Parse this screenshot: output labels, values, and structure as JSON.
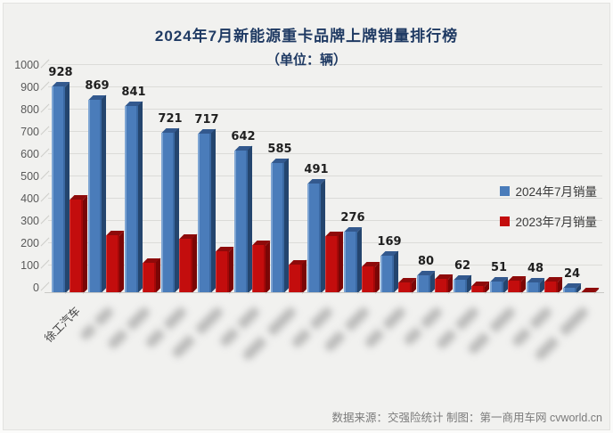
{
  "title": {
    "line1": "2024年7月新能源重卡品牌上牌销量排行榜",
    "line2": "（单位：辆）"
  },
  "legend": [
    {
      "label": "2024年7月销量",
      "color": "#4a7cba"
    },
    {
      "label": "2023年7月销量",
      "color": "#c30d0d"
    }
  ],
  "footer": {
    "source_text": "数据来源：交强险统计  制图：第一商用车网 cvworld.cn"
  },
  "chart_data": {
    "type": "bar",
    "title": "2024年7月新能源重卡品牌上牌销量排行榜",
    "subtitle": "（单位：辆）",
    "ylabel": "",
    "xlabel": "",
    "ylim": [
      0,
      1000
    ],
    "ytick_step": 100,
    "grid": true,
    "legend_position": "right",
    "data_labels_on_series": "2024年7月销量",
    "categories": [
      {
        "label": "徐工汽车",
        "blurred": false
      },
      {
        "label": "",
        "blurred": true,
        "blur_len": 46,
        "segments": 2
      },
      {
        "label": "",
        "blurred": true,
        "blur_len": 60,
        "segments": 2
      },
      {
        "label": "",
        "blurred": true,
        "blur_len": 58,
        "segments": 2
      },
      {
        "label": "",
        "blurred": true,
        "blur_len": 74,
        "segments": 2
      },
      {
        "label": "",
        "blurred": true,
        "blur_len": 56,
        "segments": 2
      },
      {
        "label": "",
        "blurred": true,
        "blur_len": 78,
        "segments": 2
      },
      {
        "label": "",
        "blurred": true,
        "blur_len": 58,
        "segments": 2
      },
      {
        "label": "",
        "blurred": true,
        "blur_len": 64,
        "segments": 2
      },
      {
        "label": "",
        "blurred": true,
        "blur_len": 58,
        "segments": 2
      },
      {
        "label": "",
        "blurred": true,
        "blur_len": 54,
        "segments": 2
      },
      {
        "label": "",
        "blurred": true,
        "blur_len": 60,
        "segments": 2
      },
      {
        "label": "",
        "blurred": true,
        "blur_len": 68,
        "segments": 2
      },
      {
        "label": "",
        "blurred": true,
        "blur_len": 56,
        "segments": 2
      },
      {
        "label": "",
        "blurred": true,
        "blur_len": 78,
        "segments": 2
      }
    ],
    "series": [
      {
        "name": "2024年7月销量",
        "color": "#4a7cba",
        "values": [
          928,
          869,
          841,
          721,
          717,
          642,
          585,
          491,
          276,
          169,
          80,
          62,
          51,
          48,
          24
        ]
      },
      {
        "name": "2023年7月销量",
        "color": "#c30d0d",
        "values_estimated_from_pixels": true,
        "values": [
          420,
          260,
          137,
          245,
          188,
          215,
          130,
          257,
          120,
          48,
          63,
          32,
          55,
          52,
          4
        ]
      }
    ]
  }
}
